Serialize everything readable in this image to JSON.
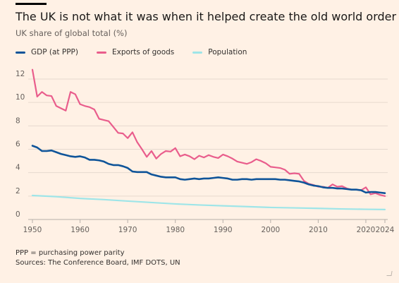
{
  "title": "The UK is not what it was when it helped create the old world order",
  "subtitle": "UK share of global total (%)",
  "footnote": "PPP = purchasing power parity",
  "source": "Sources: The Conference Board, IMF DOTS, UN",
  "chart_data": {
    "type": "line",
    "title": "The UK is not what it was when it helped create the old world order",
    "ylabel": "UK share of global total (%)",
    "xlim": [
      1950,
      2024
    ],
    "ylim": [
      0,
      13
    ],
    "x_ticks": [
      "1950",
      "1960",
      "1970",
      "1980",
      "1990",
      "2000",
      "2010",
      "2020",
      "2024"
    ],
    "y_ticks": [
      "0",
      "2",
      "4",
      "6",
      "8",
      "10",
      "12"
    ],
    "grid": true,
    "legend_position": "top-left",
    "series": [
      {
        "name": "GDP (at PPP)",
        "color": "#0f5499",
        "points": [
          [
            1950,
            6.3
          ],
          [
            1951,
            6.15
          ],
          [
            1952,
            5.85
          ],
          [
            1953,
            5.85
          ],
          [
            1954,
            5.9
          ],
          [
            1955,
            5.75
          ],
          [
            1956,
            5.6
          ],
          [
            1957,
            5.5
          ],
          [
            1958,
            5.4
          ],
          [
            1959,
            5.35
          ],
          [
            1960,
            5.4
          ],
          [
            1961,
            5.3
          ],
          [
            1962,
            5.1
          ],
          [
            1963,
            5.1
          ],
          [
            1964,
            5.05
          ],
          [
            1965,
            4.95
          ],
          [
            1966,
            4.75
          ],
          [
            1967,
            4.65
          ],
          [
            1968,
            4.65
          ],
          [
            1969,
            4.55
          ],
          [
            1970,
            4.4
          ],
          [
            1971,
            4.1
          ],
          [
            1972,
            4.05
          ],
          [
            1973,
            4.05
          ],
          [
            1974,
            4.05
          ],
          [
            1975,
            3.85
          ],
          [
            1976,
            3.75
          ],
          [
            1977,
            3.65
          ],
          [
            1978,
            3.6
          ],
          [
            1979,
            3.6
          ],
          [
            1980,
            3.6
          ],
          [
            1981,
            3.45
          ],
          [
            1982,
            3.4
          ],
          [
            1983,
            3.45
          ],
          [
            1984,
            3.5
          ],
          [
            1985,
            3.45
          ],
          [
            1986,
            3.5
          ],
          [
            1987,
            3.5
          ],
          [
            1988,
            3.55
          ],
          [
            1989,
            3.6
          ],
          [
            1990,
            3.55
          ],
          [
            1991,
            3.5
          ],
          [
            1992,
            3.4
          ],
          [
            1993,
            3.4
          ],
          [
            1994,
            3.45
          ],
          [
            1995,
            3.45
          ],
          [
            1996,
            3.4
          ],
          [
            1997,
            3.45
          ],
          [
            1998,
            3.45
          ],
          [
            1999,
            3.45
          ],
          [
            2000,
            3.45
          ],
          [
            2001,
            3.45
          ],
          [
            2002,
            3.4
          ],
          [
            2003,
            3.4
          ],
          [
            2004,
            3.35
          ],
          [
            2005,
            3.3
          ],
          [
            2006,
            3.25
          ],
          [
            2007,
            3.15
          ],
          [
            2008,
            3.0
          ],
          [
            2009,
            2.9
          ],
          [
            2010,
            2.85
          ],
          [
            2011,
            2.75
          ],
          [
            2012,
            2.7
          ],
          [
            2013,
            2.7
          ],
          [
            2014,
            2.65
          ],
          [
            2015,
            2.65
          ],
          [
            2016,
            2.6
          ],
          [
            2017,
            2.55
          ],
          [
            2018,
            2.55
          ],
          [
            2019,
            2.5
          ],
          [
            2020,
            2.3
          ],
          [
            2021,
            2.35
          ],
          [
            2022,
            2.35
          ],
          [
            2023,
            2.3
          ],
          [
            2024,
            2.25
          ]
        ]
      },
      {
        "name": "Exports of goods",
        "color": "#e95d8c",
        "points": [
          [
            1950,
            12.8
          ],
          [
            1951,
            10.5
          ],
          [
            1952,
            10.9
          ],
          [
            1953,
            10.6
          ],
          [
            1954,
            10.55
          ],
          [
            1955,
            9.7
          ],
          [
            1956,
            9.5
          ],
          [
            1957,
            9.3
          ],
          [
            1958,
            10.9
          ],
          [
            1959,
            10.7
          ],
          [
            1960,
            9.85
          ],
          [
            1961,
            9.7
          ],
          [
            1962,
            9.6
          ],
          [
            1963,
            9.4
          ],
          [
            1964,
            8.6
          ],
          [
            1965,
            8.5
          ],
          [
            1966,
            8.4
          ],
          [
            1967,
            7.9
          ],
          [
            1968,
            7.4
          ],
          [
            1969,
            7.35
          ],
          [
            1970,
            6.95
          ],
          [
            1971,
            7.45
          ],
          [
            1972,
            6.6
          ],
          [
            1973,
            6.0
          ],
          [
            1974,
            5.35
          ],
          [
            1975,
            5.85
          ],
          [
            1976,
            5.2
          ],
          [
            1977,
            5.6
          ],
          [
            1978,
            5.85
          ],
          [
            1979,
            5.8
          ],
          [
            1980,
            6.1
          ],
          [
            1981,
            5.4
          ],
          [
            1982,
            5.55
          ],
          [
            1983,
            5.4
          ],
          [
            1984,
            5.15
          ],
          [
            1985,
            5.45
          ],
          [
            1986,
            5.3
          ],
          [
            1987,
            5.5
          ],
          [
            1988,
            5.35
          ],
          [
            1989,
            5.25
          ],
          [
            1990,
            5.55
          ],
          [
            1991,
            5.4
          ],
          [
            1992,
            5.2
          ],
          [
            1993,
            4.95
          ],
          [
            1994,
            4.85
          ],
          [
            1995,
            4.75
          ],
          [
            1996,
            4.9
          ],
          [
            1997,
            5.15
          ],
          [
            1998,
            5.0
          ],
          [
            1999,
            4.8
          ],
          [
            2000,
            4.5
          ],
          [
            2001,
            4.45
          ],
          [
            2002,
            4.4
          ],
          [
            2003,
            4.25
          ],
          [
            2004,
            3.9
          ],
          [
            2005,
            3.95
          ],
          [
            2006,
            3.9
          ],
          [
            2007,
            3.3
          ],
          [
            2008,
            3.05
          ],
          [
            2009,
            2.95
          ],
          [
            2010,
            2.8
          ],
          [
            2011,
            2.8
          ],
          [
            2012,
            2.7
          ],
          [
            2013,
            3.0
          ],
          [
            2014,
            2.8
          ],
          [
            2015,
            2.85
          ],
          [
            2016,
            2.65
          ],
          [
            2017,
            2.55
          ],
          [
            2018,
            2.55
          ],
          [
            2019,
            2.5
          ],
          [
            2020,
            2.75
          ],
          [
            2021,
            2.15
          ],
          [
            2022,
            2.25
          ],
          [
            2023,
            2.1
          ],
          [
            2024,
            2.0
          ]
        ]
      },
      {
        "name": "Population",
        "color": "#9ee5e8",
        "points": [
          [
            1950,
            2.05
          ],
          [
            1955,
            1.95
          ],
          [
            1960,
            1.8
          ],
          [
            1965,
            1.7
          ],
          [
            1970,
            1.57
          ],
          [
            1975,
            1.45
          ],
          [
            1980,
            1.33
          ],
          [
            1985,
            1.24
          ],
          [
            1990,
            1.17
          ],
          [
            1995,
            1.1
          ],
          [
            2000,
            1.03
          ],
          [
            2005,
            0.99
          ],
          [
            2010,
            0.95
          ],
          [
            2015,
            0.9
          ],
          [
            2020,
            0.87
          ],
          [
            2024,
            0.85
          ]
        ]
      }
    ]
  }
}
